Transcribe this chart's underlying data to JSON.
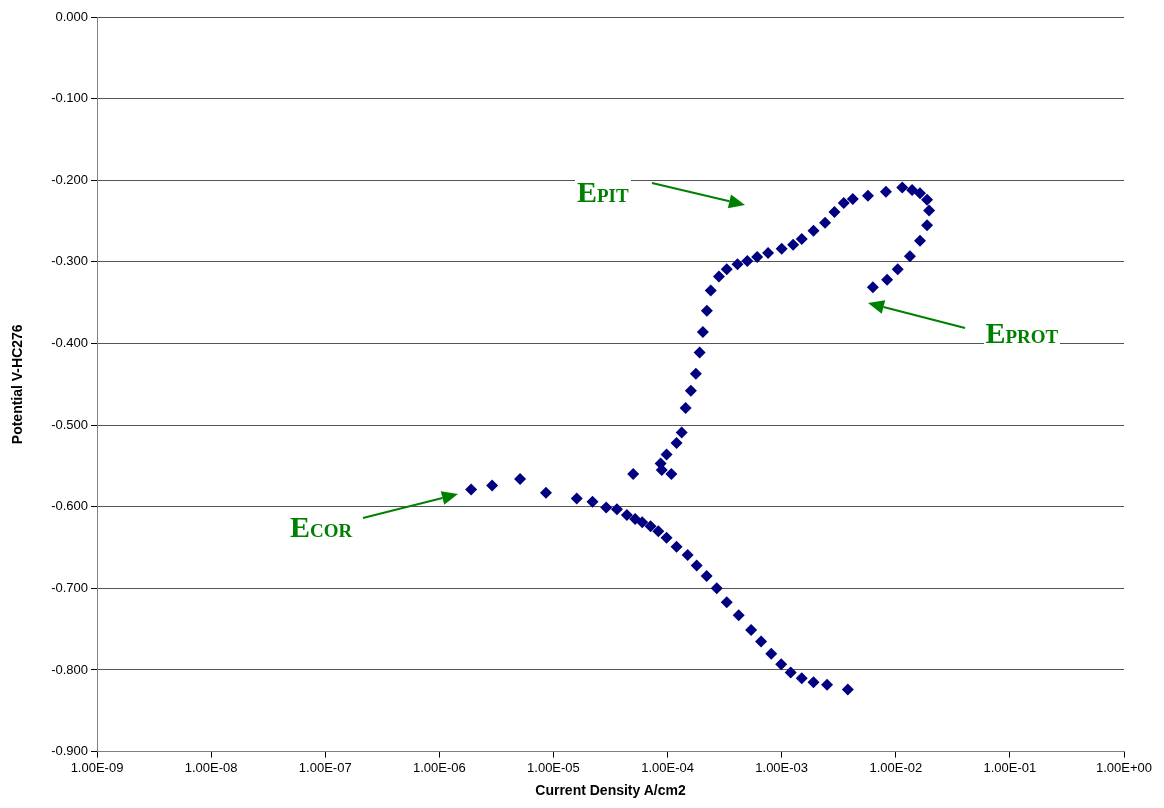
{
  "chart_data": {
    "type": "scatter",
    "xlabel": "Current Density A/cm2",
    "ylabel": "Potential V-HC276",
    "log": "x",
    "grid": "y",
    "legend": false,
    "marker": "diamond",
    "xlim": [
      1e-09,
      1
    ],
    "xticks": [
      {
        "value": 1e-09,
        "label": "1.00E-09"
      },
      {
        "value": 1e-08,
        "label": "1.00E-08"
      },
      {
        "value": 1e-07,
        "label": "1.00E-07"
      },
      {
        "value": 1e-06,
        "label": "1.00E-06"
      },
      {
        "value": 1e-05,
        "label": "1.00E-05"
      },
      {
        "value": 0.0001,
        "label": "1.00E-04"
      },
      {
        "value": 0.001,
        "label": "1.00E-03"
      },
      {
        "value": 0.01,
        "label": "1.00E-02"
      },
      {
        "value": 0.1,
        "label": "1.00E-01"
      },
      {
        "value": 1,
        "label": "1.00E+00"
      }
    ],
    "ylim": [
      -0.9,
      0
    ],
    "yticks": [
      {
        "value": -0.9,
        "label": "-0.900"
      },
      {
        "value": -0.8,
        "label": "-0.800"
      },
      {
        "value": -0.7,
        "label": "-0.700"
      },
      {
        "value": -0.6,
        "label": "-0.600"
      },
      {
        "value": -0.5,
        "label": "-0.500"
      },
      {
        "value": -0.4,
        "label": "-0.400"
      },
      {
        "value": -0.3,
        "label": "-0.300"
      },
      {
        "value": -0.2,
        "label": "-0.200"
      },
      {
        "value": -0.1,
        "label": "-0.100"
      },
      {
        "value": 0,
        "label": "0.000"
      }
    ],
    "series": [
      {
        "color": "#000080",
        "x": [
          0.0038,
          0.0025,
          0.0019,
          0.0015,
          0.0012,
          0.00099,
          0.00081,
          0.00066,
          0.00054,
          0.00042,
          0.00033,
          0.00027,
          0.00022,
          0.00018,
          0.00015,
          0.00012,
          9.8e-05,
          8.3e-05,
          7.1e-05,
          6e-05,
          5.2e-05,
          4.4e-05,
          3.6e-05,
          2.9e-05,
          2.2e-05,
          1.6e-05,
          8.6e-06,
          5.1e-06,
          2.9e-06,
          1.9e-06,
          5e-05,
          8.9e-05,
          0.000108,
          8.7e-05,
          9.8e-05,
          0.00012,
          0.000133,
          0.000144,
          0.00016,
          0.000177,
          0.000191,
          0.000204,
          0.000221,
          0.000239,
          0.000282,
          0.00033,
          0.00041,
          0.0005,
          0.00061,
          0.00076,
          0.001,
          0.00126,
          0.0015,
          0.0019,
          0.0024,
          0.0029,
          0.0035,
          0.0042,
          0.0057,
          0.0082,
          0.0114,
          0.0139,
          0.0163,
          0.0188,
          0.0196,
          0.0188,
          0.0163,
          0.0133,
          0.0104,
          0.0084,
          0.0063
        ],
        "values": [
          -0.824,
          -0.818,
          -0.815,
          -0.81,
          -0.803,
          -0.793,
          -0.78,
          -0.765,
          -0.751,
          -0.733,
          -0.717,
          -0.7,
          -0.685,
          -0.672,
          -0.659,
          -0.649,
          -0.638,
          -0.63,
          -0.624,
          -0.619,
          -0.615,
          -0.61,
          -0.603,
          -0.601,
          -0.594,
          -0.59,
          -0.583,
          -0.566,
          -0.574,
          -0.579,
          -0.56,
          -0.555,
          -0.56,
          -0.547,
          -0.536,
          -0.522,
          -0.509,
          -0.479,
          -0.458,
          -0.437,
          -0.411,
          -0.386,
          -0.36,
          -0.335,
          -0.318,
          -0.309,
          -0.303,
          -0.299,
          -0.294,
          -0.289,
          -0.284,
          -0.279,
          -0.272,
          -0.262,
          -0.252,
          -0.239,
          -0.228,
          -0.223,
          -0.219,
          -0.214,
          -0.209,
          -0.212,
          -0.216,
          -0.224,
          -0.237,
          -0.255,
          -0.274,
          -0.293,
          -0.309,
          -0.322,
          -0.331
        ]
      }
    ],
    "annotations": [
      "E$_{PIT}$",
      "E$_{PROT}$",
      "E$_{COR}$"
    ]
  }
}
